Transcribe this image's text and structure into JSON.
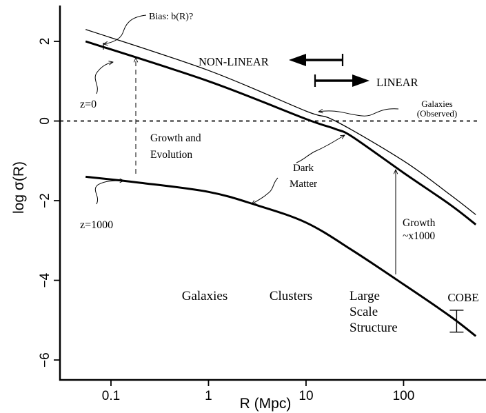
{
  "chart_data": {
    "type": "line",
    "x_scale": "log",
    "xlabel": "R (Mpc)",
    "ylabel": "log σ(R)",
    "xlim": [
      0.03,
      700
    ],
    "ylim": [
      -6.5,
      2.9
    ],
    "grid": false,
    "x_ticks": [
      {
        "value": 0.1,
        "label": "0.1"
      },
      {
        "value": 1,
        "label": "1"
      },
      {
        "value": 10,
        "label": "10"
      },
      {
        "value": 100,
        "label": "100"
      }
    ],
    "y_ticks": [
      {
        "value": 2,
        "label": "2"
      },
      {
        "value": 0,
        "label": "0"
      },
      {
        "value": -2,
        "label": "−2"
      },
      {
        "value": -4,
        "label": "−4"
      },
      {
        "value": -6,
        "label": "−6"
      }
    ],
    "reference_line": {
      "y": 0,
      "style": "dotted"
    },
    "series": [
      {
        "key": "galaxies",
        "color": "#000000",
        "x": [
          0.055,
          1,
          10,
          20,
          100,
          300,
          550
        ],
        "y": [
          2.3,
          1.27,
          0.25,
          0.0,
          -1.0,
          -1.85,
          -2.35
        ]
      },
      {
        "key": "dark_matter_z0",
        "color": "#000000",
        "x": [
          0.055,
          1,
          10,
          20,
          30,
          100,
          300,
          550
        ],
        "y": [
          2.0,
          1.0,
          0.05,
          -0.2,
          -0.4,
          -1.3,
          -2.1,
          -2.6
        ]
      },
      {
        "key": "dark_matter_z1000",
        "color": "#000000",
        "x": [
          0.055,
          0.2,
          1,
          3,
          10,
          30,
          100,
          300,
          550
        ],
        "y": [
          -1.4,
          -1.55,
          -1.78,
          -2.1,
          -2.55,
          -3.25,
          -4.1,
          -4.9,
          -5.4
        ]
      }
    ],
    "error_bar": {
      "label": "COBE",
      "x": 350,
      "y_low": -5.3,
      "y_high": -4.75
    },
    "annotations": {
      "bias": "Bias: b(R)?",
      "nonlinear": "NON-LINEAR",
      "linear": "LINEAR",
      "galaxies_observed": [
        "Galaxies",
        "(Observed)"
      ],
      "z0": "z=0",
      "z1000": "z=1000",
      "growth_evolution": [
        "Growth and",
        "Evolution"
      ],
      "dark_matter": [
        "Dark",
        "Matter"
      ],
      "growth": [
        "Growth",
        "~x1000"
      ],
      "scale_galaxies": "Galaxies",
      "scale_clusters": "Clusters",
      "scale_lss": [
        "Large",
        "Scale",
        "Structure"
      ],
      "cobe": "COBE"
    }
  }
}
